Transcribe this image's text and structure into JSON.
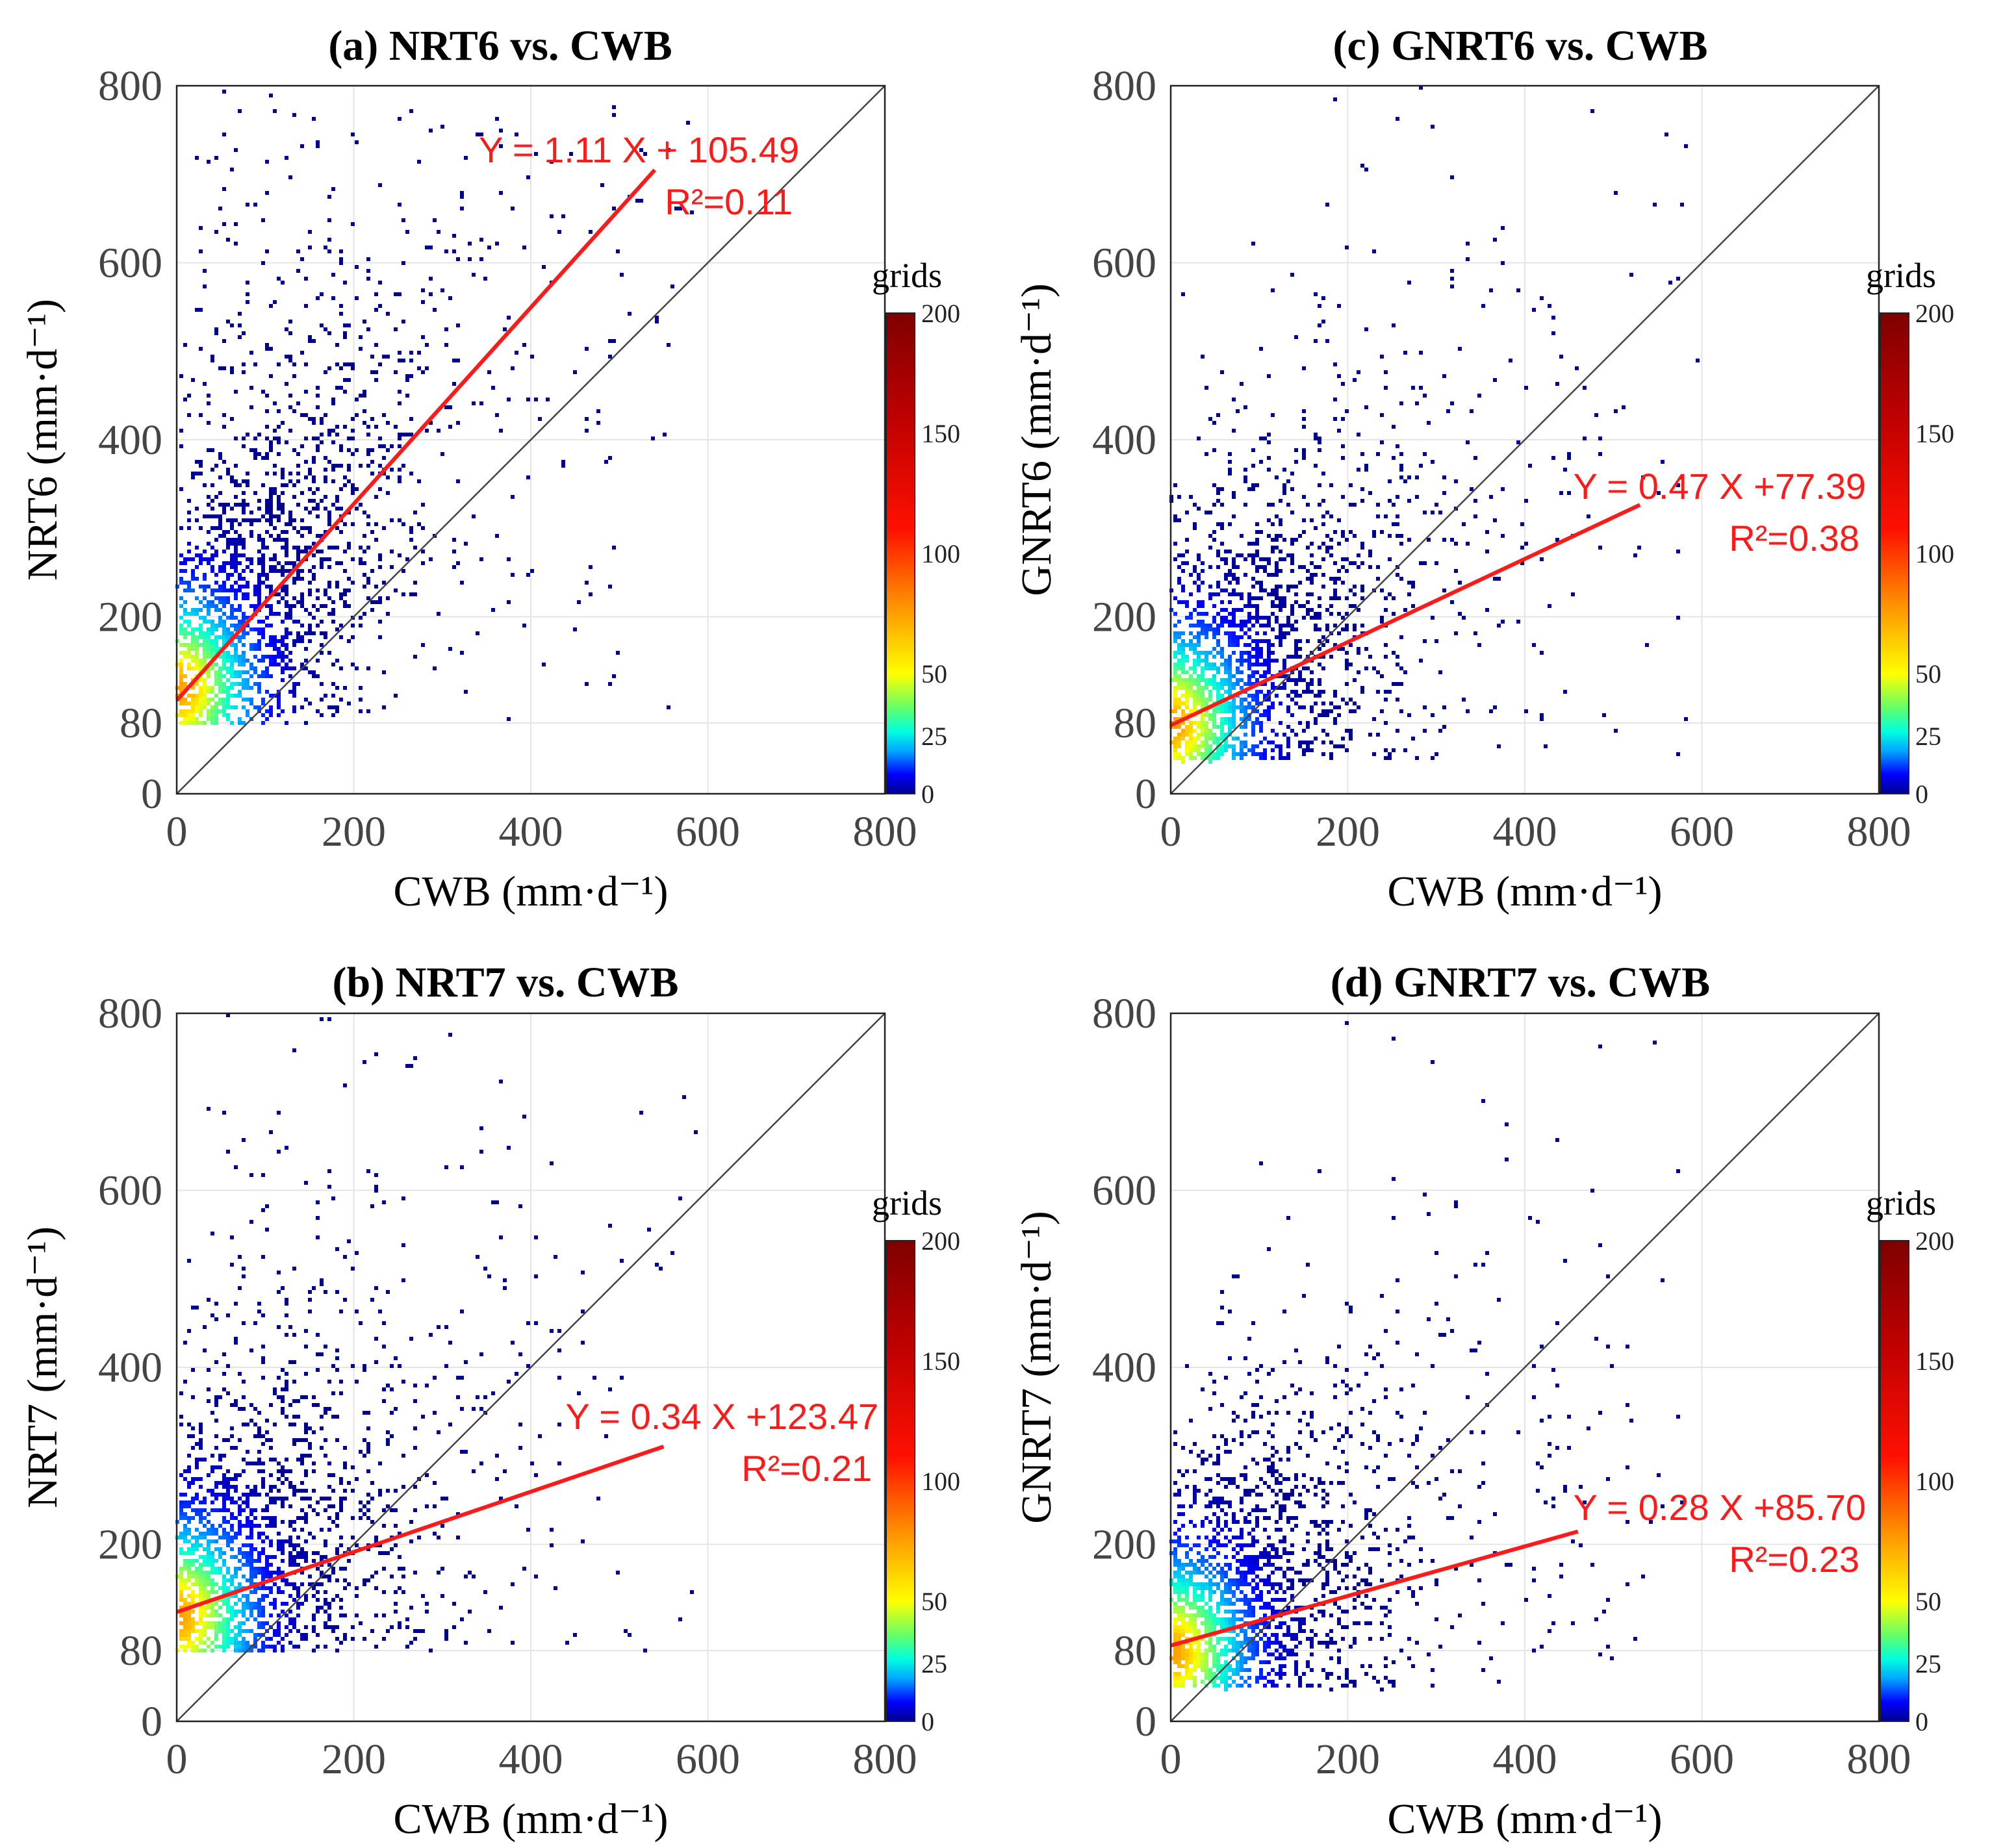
{
  "chart_data": [
    {
      "type": "heatmap",
      "title": "(a) NRT6 vs. CWB",
      "xlabel": "CWB (mm·d⁻¹)",
      "ylabel": "NRT6 (mm·d⁻¹)",
      "xlim": [
        0,
        800
      ],
      "ylim": [
        0,
        800
      ],
      "xticks": [
        "0",
        "200",
        "400",
        "600",
        "800"
      ],
      "yticks": [
        "0",
        "80",
        "200",
        "400",
        "600",
        "800"
      ],
      "ytick_values": [
        0,
        80,
        200,
        400,
        600,
        800
      ],
      "regression": {
        "slope": 1.11,
        "intercept": 105.49,
        "x_end": 540
      },
      "equation_label": "Y = 1.11 X + 105.49",
      "r2_label": "R²=0.11",
      "grid": true,
      "colorbar": {
        "title": "grids",
        "ticks": [
          "0",
          "25",
          "50",
          "100",
          "150",
          "200"
        ]
      },
      "density": {
        "x_max": 600,
        "y_min": 80,
        "spread": 1.0
      }
    },
    {
      "type": "heatmap",
      "title": "(c) GNRT6 vs. CWB",
      "xlabel": "CWB (mm·d⁻¹)",
      "ylabel": "GNRT6 (mm·d⁻¹)",
      "xlim": [
        0,
        800
      ],
      "ylim": [
        0,
        800
      ],
      "xticks": [
        "0",
        "200",
        "400",
        "600",
        "800"
      ],
      "yticks": [
        "0",
        "80",
        "200",
        "400",
        "600",
        "800"
      ],
      "ytick_values": [
        0,
        80,
        200,
        400,
        600,
        800
      ],
      "regression": {
        "slope": 0.47,
        "intercept": 77.39,
        "x_end": 530
      },
      "equation_label": "Y = 0.47 X +77.39",
      "r2_label": "R²=0.38",
      "grid": true,
      "colorbar": {
        "title": "grids",
        "ticks": [
          "0",
          "25",
          "50",
          "100",
          "150",
          "200"
        ]
      },
      "density": {
        "x_max": 600,
        "y_min": 40,
        "spread": 0.45
      }
    },
    {
      "type": "heatmap",
      "title": "(b) NRT7 vs. CWB",
      "xlabel": "CWB (mm·d⁻¹)",
      "ylabel": "NRT7 (mm·d⁻¹)",
      "xlim": [
        0,
        800
      ],
      "ylim": [
        0,
        800
      ],
      "xticks": [
        "0",
        "200",
        "400",
        "600",
        "800"
      ],
      "yticks": [
        "0",
        "80",
        "200",
        "400",
        "600",
        "800"
      ],
      "ytick_values": [
        0,
        80,
        200,
        400,
        600,
        800
      ],
      "regression": {
        "slope": 0.34,
        "intercept": 123.47,
        "x_end": 550
      },
      "equation_label": "Y = 0.34 X +123.47",
      "r2_label": "R²=0.21",
      "grid": true,
      "colorbar": {
        "title": "grids",
        "ticks": [
          "0",
          "25",
          "50",
          "100",
          "150",
          "200"
        ]
      },
      "density": {
        "x_max": 600,
        "y_min": 80,
        "spread": 0.7
      }
    },
    {
      "type": "heatmap",
      "title": "(d) GNRT7 vs. CWB",
      "xlabel": "CWB (mm·d⁻¹)",
      "ylabel": "GNRT7 (mm·d⁻¹)",
      "xlim": [
        0,
        800
      ],
      "ylim": [
        0,
        800
      ],
      "xticks": [
        "0",
        "200",
        "400",
        "600",
        "800"
      ],
      "yticks": [
        "0",
        "80",
        "200",
        "400",
        "600",
        "800"
      ],
      "ytick_values": [
        0,
        80,
        200,
        400,
        600,
        800
      ],
      "regression": {
        "slope": 0.28,
        "intercept": 85.7,
        "x_end": 460
      },
      "equation_label": "Y = 0.28 X +85.70",
      "r2_label": "R²=0.23",
      "grid": true,
      "colorbar": {
        "title": "grids",
        "ticks": [
          "0",
          "25",
          "50",
          "100",
          "150",
          "200"
        ]
      },
      "density": {
        "x_max": 580,
        "y_min": 40,
        "spread": 0.4
      }
    }
  ]
}
